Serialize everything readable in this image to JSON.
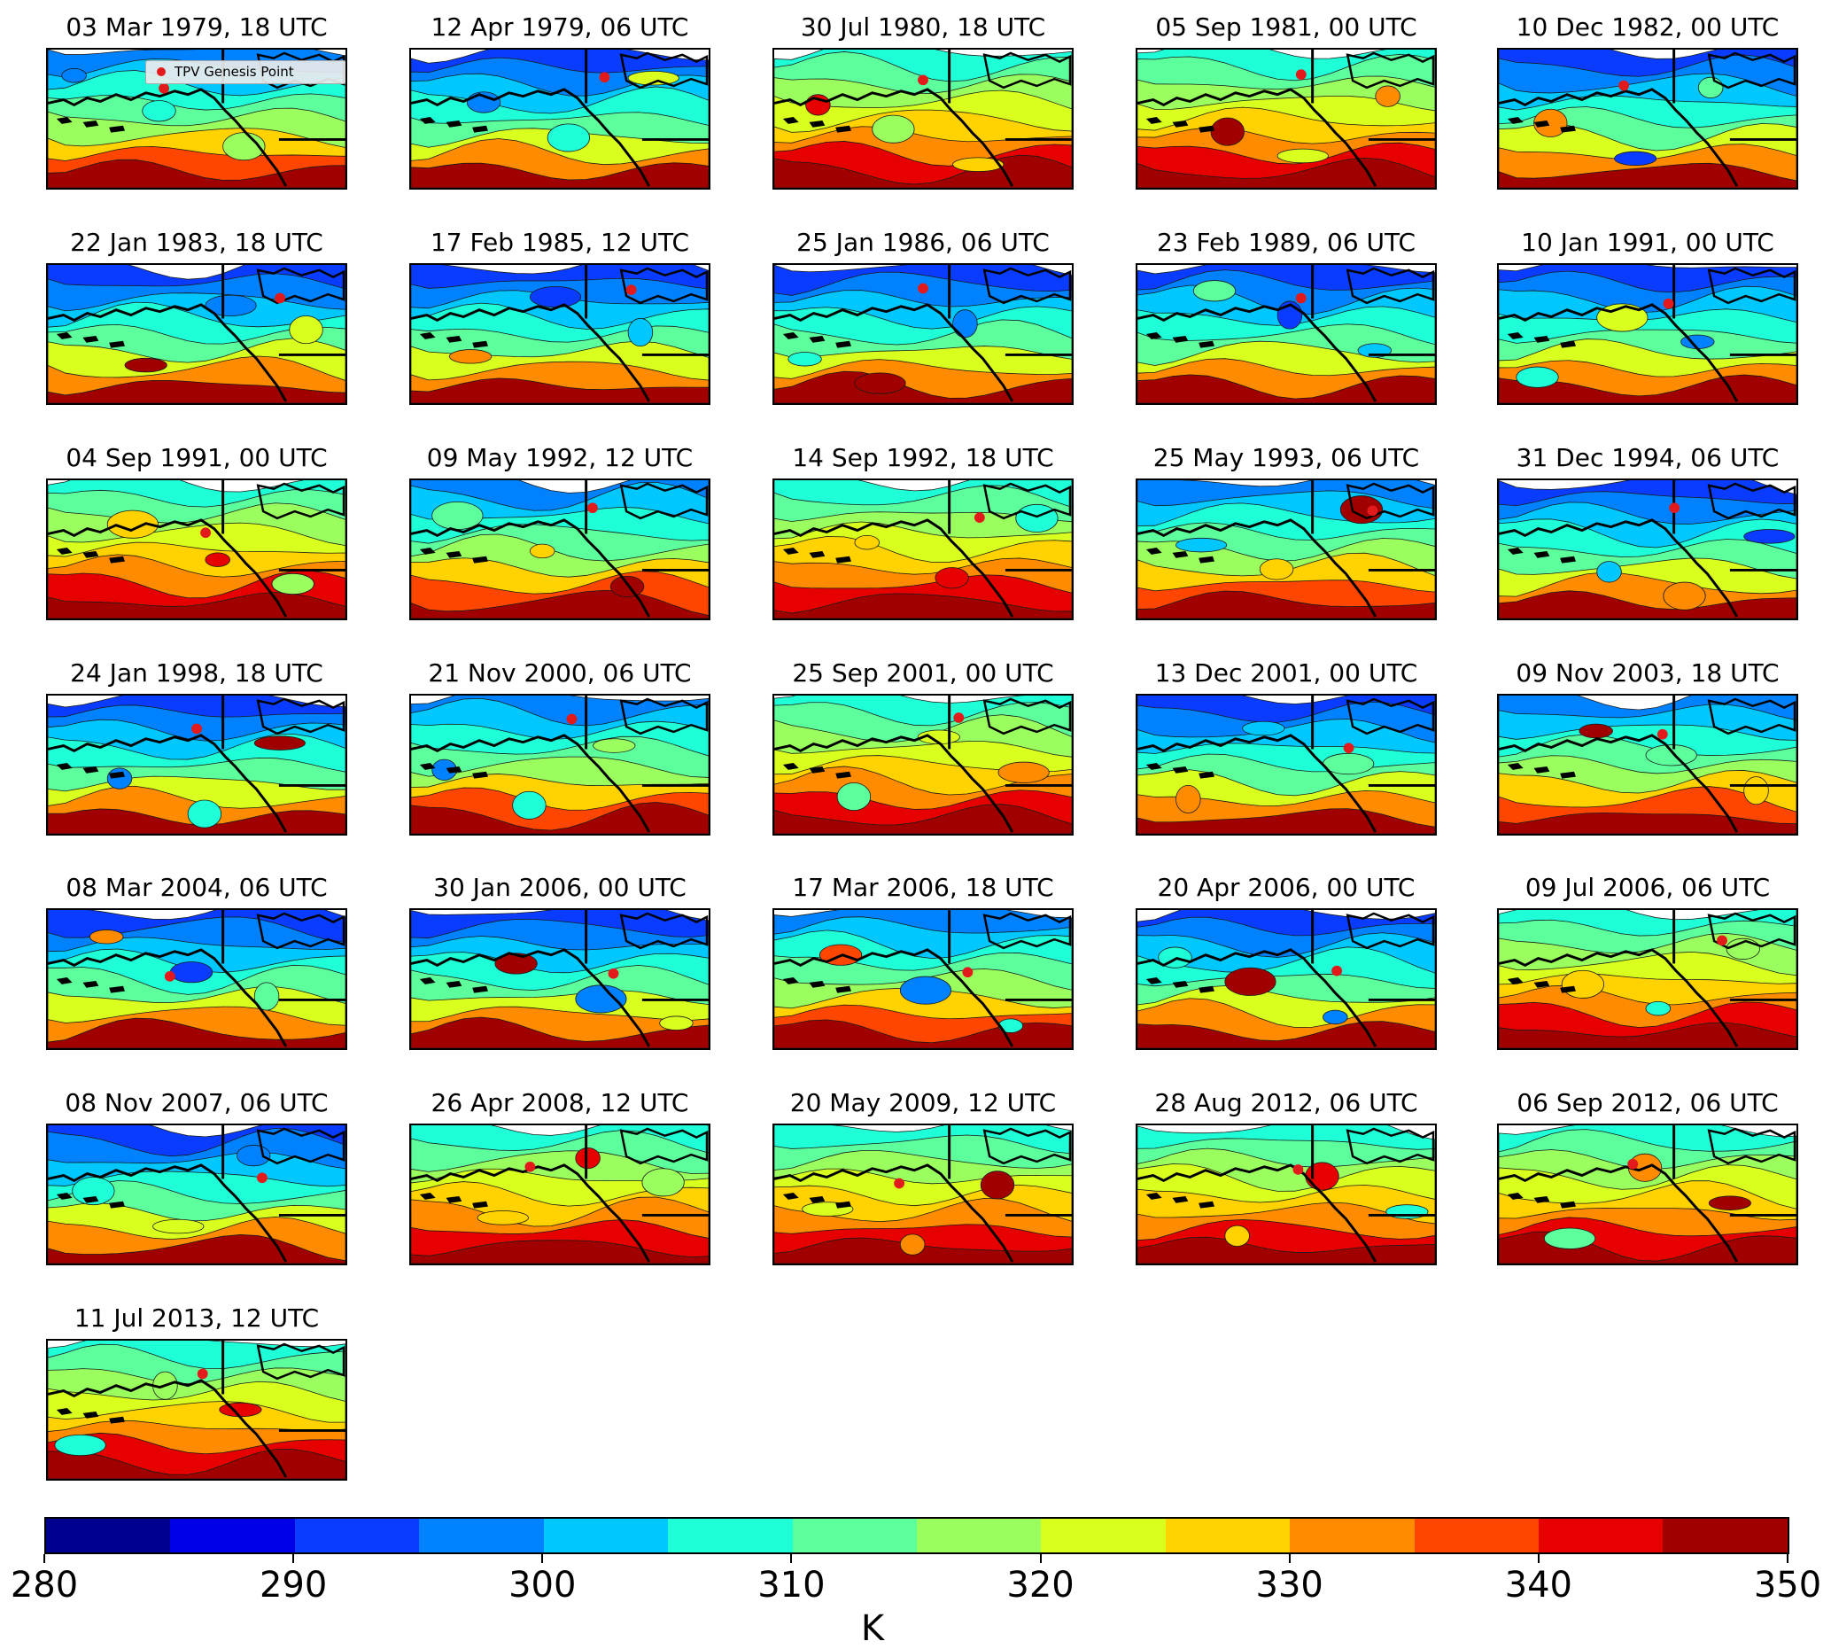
{
  "figure": {
    "legend_label": "TPV Genesis Point",
    "legend_marker_color": "#e31a1c",
    "colorbar": {
      "unit": "K",
      "ticks": [
        "280",
        "290",
        "300",
        "310",
        "320",
        "330",
        "340",
        "350"
      ],
      "colors": [
        "#00008f",
        "#0000e6",
        "#0a3cff",
        "#0082ff",
        "#00c8ff",
        "#1effd8",
        "#5cff9c",
        "#9aff5e",
        "#d8ff1e",
        "#ffd200",
        "#ff8c00",
        "#ff4600",
        "#e60000",
        "#a00000"
      ]
    },
    "panels": [
      {
        "title": "03 Mar 1979, 18 UTC",
        "marker": [
          0.39,
          0.28
        ],
        "scheme": "mixed"
      },
      {
        "title": "12 Apr 1979, 06 UTC",
        "marker": [
          0.65,
          0.2
        ],
        "scheme": "cold"
      },
      {
        "title": "30 Jul 1980, 18 UTC",
        "marker": [
          0.5,
          0.22
        ],
        "scheme": "warm"
      },
      {
        "title": "05 Sep 1981, 00 UTC",
        "marker": [
          0.55,
          0.18
        ],
        "scheme": "warm"
      },
      {
        "title": "10 Dec 1982, 00 UTC",
        "marker": [
          0.42,
          0.26
        ],
        "scheme": "cold"
      },
      {
        "title": "22 Jan 1983, 18 UTC",
        "marker": [
          0.78,
          0.24
        ],
        "scheme": "cold"
      },
      {
        "title": "17 Feb 1985, 12 UTC",
        "marker": [
          0.74,
          0.18
        ],
        "scheme": "cold"
      },
      {
        "title": "25 Jan 1986, 06 UTC",
        "marker": [
          0.5,
          0.17
        ],
        "scheme": "cold"
      },
      {
        "title": "23 Feb 1989, 06 UTC",
        "marker": [
          0.55,
          0.24
        ],
        "scheme": "cold"
      },
      {
        "title": "10 Jan 1991, 00 UTC",
        "marker": [
          0.57,
          0.28
        ],
        "scheme": "cold"
      },
      {
        "title": "04 Sep 1991, 00 UTC",
        "marker": [
          0.53,
          0.38
        ],
        "scheme": "warm"
      },
      {
        "title": "09 May 1992, 12 UTC",
        "marker": [
          0.61,
          0.2
        ],
        "scheme": "mixed"
      },
      {
        "title": "14 Sep 1992, 18 UTC",
        "marker": [
          0.69,
          0.27
        ],
        "scheme": "warm"
      },
      {
        "title": "25 May 1993, 06 UTC",
        "marker": [
          0.79,
          0.22
        ],
        "scheme": "mixed"
      },
      {
        "title": "31 Dec 1994, 06 UTC",
        "marker": [
          0.59,
          0.2
        ],
        "scheme": "cold"
      },
      {
        "title": "24 Jan 1998, 18 UTC",
        "marker": [
          0.5,
          0.24
        ],
        "scheme": "cold"
      },
      {
        "title": "21 Nov 2000, 06 UTC",
        "marker": [
          0.54,
          0.17
        ],
        "scheme": "mixed"
      },
      {
        "title": "25 Sep 2001, 00 UTC",
        "marker": [
          0.62,
          0.16
        ],
        "scheme": "warm"
      },
      {
        "title": "13 Dec 2001, 00 UTC",
        "marker": [
          0.71,
          0.38
        ],
        "scheme": "cold"
      },
      {
        "title": "09 Nov 2003, 18 UTC",
        "marker": [
          0.55,
          0.28
        ],
        "scheme": "mixed"
      },
      {
        "title": "08 Mar 2004, 06 UTC",
        "marker": [
          0.41,
          0.48
        ],
        "scheme": "cold"
      },
      {
        "title": "30 Jan 2006, 00 UTC",
        "marker": [
          0.68,
          0.46
        ],
        "scheme": "cold"
      },
      {
        "title": "17 Mar 2006, 18 UTC",
        "marker": [
          0.65,
          0.45
        ],
        "scheme": "mixed"
      },
      {
        "title": "20 Apr 2006, 00 UTC",
        "marker": [
          0.67,
          0.44
        ],
        "scheme": "cold"
      },
      {
        "title": "09 Jul 2006, 06 UTC",
        "marker": [
          0.75,
          0.22
        ],
        "scheme": "warm"
      },
      {
        "title": "08 Nov 2007, 06 UTC",
        "marker": [
          0.72,
          0.38
        ],
        "scheme": "cold"
      },
      {
        "title": "26 Apr 2008, 12 UTC",
        "marker": [
          0.4,
          0.3
        ],
        "scheme": "warm"
      },
      {
        "title": "20 May 2009, 12 UTC",
        "marker": [
          0.42,
          0.42
        ],
        "scheme": "warm"
      },
      {
        "title": "28 Aug 2012, 06 UTC",
        "marker": [
          0.54,
          0.32
        ],
        "scheme": "warm"
      },
      {
        "title": "06 Sep 2012, 06 UTC",
        "marker": [
          0.45,
          0.28
        ],
        "scheme": "warm"
      },
      {
        "title": "11 Jul 2013, 12 UTC",
        "marker": [
          0.52,
          0.24
        ],
        "scheme": "warm"
      }
    ]
  }
}
